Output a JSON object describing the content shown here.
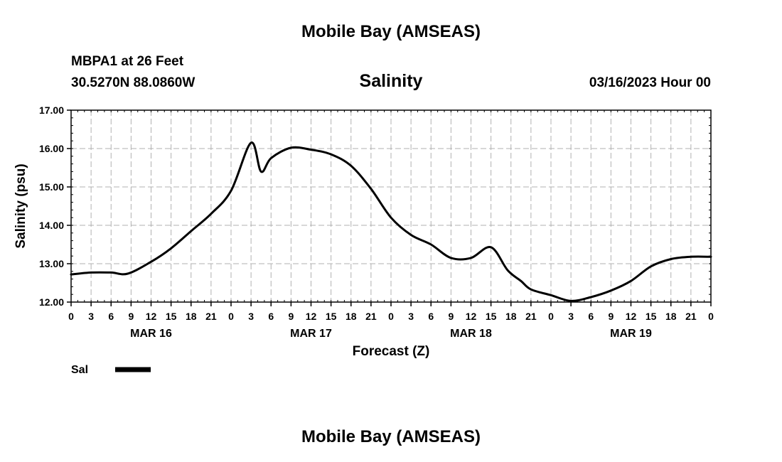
{
  "page": {
    "top_title": "Mobile Bay (AMSEAS)",
    "bottom_title": "Mobile Bay (AMSEAS)"
  },
  "station": {
    "name_depth": "MBPA1 at 26 Feet",
    "coords": "30.5270N  88.0860W",
    "datetime": "03/16/2023 Hour 00"
  },
  "chart_data": {
    "type": "line",
    "title": "Salinity",
    "xlabel": "Forecast (Z)",
    "ylabel": "Salinity (psu)",
    "ylim": [
      12.0,
      17.0
    ],
    "xlim_hours": [
      0,
      96
    ],
    "grid": true,
    "yticks": [
      "12.00",
      "13.00",
      "14.00",
      "15.00",
      "16.00",
      "17.00"
    ],
    "xticks": [
      "0",
      "3",
      "6",
      "9",
      "12",
      "15",
      "18",
      "21",
      "0",
      "3",
      "6",
      "9",
      "12",
      "15",
      "18",
      "21",
      "0",
      "3",
      "6",
      "9",
      "12",
      "15",
      "18",
      "21",
      "0",
      "3",
      "6",
      "9",
      "12",
      "15",
      "18",
      "21",
      "0"
    ],
    "day_labels": [
      {
        "label": "MAR 16",
        "hour": 12
      },
      {
        "label": "MAR 17",
        "hour": 36
      },
      {
        "label": "MAR 18",
        "hour": 60
      },
      {
        "label": "MAR 19",
        "hour": 84
      }
    ],
    "legend": {
      "position": "bottom-left",
      "entries": [
        "Sal"
      ]
    },
    "series": [
      {
        "name": "Sal",
        "x": [
          0,
          3,
          6,
          8.5,
          12,
          15,
          18,
          21,
          24,
          27,
          28.5,
          30,
          33,
          36,
          39,
          42,
          45,
          48,
          51,
          54,
          57,
          60,
          63,
          65.5,
          67.5,
          69,
          72,
          75,
          78,
          81,
          84,
          87,
          90,
          93,
          96
        ],
        "values": [
          12.72,
          12.77,
          12.77,
          12.74,
          13.05,
          13.4,
          13.85,
          14.3,
          14.9,
          16.15,
          15.4,
          15.75,
          16.02,
          15.97,
          15.85,
          15.55,
          14.95,
          14.2,
          13.75,
          13.5,
          13.15,
          13.15,
          13.43,
          12.83,
          12.55,
          12.33,
          12.18,
          12.03,
          12.13,
          12.3,
          12.55,
          12.93,
          13.12,
          13.18,
          13.18
        ]
      }
    ]
  }
}
